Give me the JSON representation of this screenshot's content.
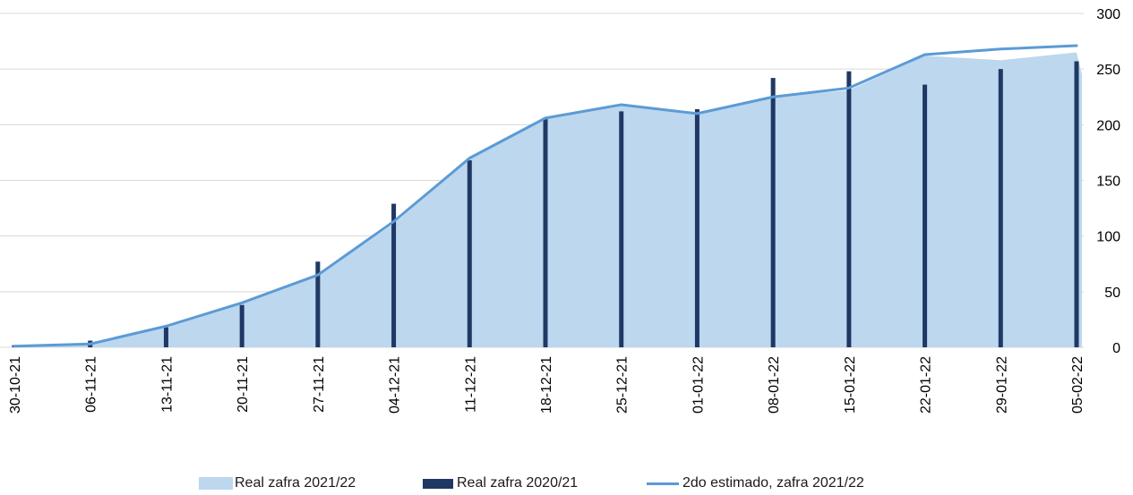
{
  "chart_data": {
    "type": "bar",
    "title": "",
    "xlabel": "",
    "ylabel": "",
    "ylim": [
      0,
      300
    ],
    "yticks": [
      0,
      50,
      100,
      150,
      200,
      250,
      300
    ],
    "y_axis_position": "right",
    "grid": "horizontal",
    "legend_position": "bottom",
    "categories": [
      "30-10-21",
      "06-11-21",
      "13-11-21",
      "20-11-21",
      "27-11-21",
      "04-12-21",
      "11-12-21",
      "18-12-21",
      "25-12-21",
      "01-01-22",
      "08-01-22",
      "15-01-22",
      "22-01-22",
      "29-01-22",
      "05-02-22"
    ],
    "series": [
      {
        "name": "Real zafra 2021/22",
        "kind": "area",
        "color": "#bdd7ee",
        "values": [
          1,
          3,
          18,
          40,
          64,
          111,
          169,
          206,
          218,
          210,
          225,
          231,
          262,
          258,
          265
        ]
      },
      {
        "name": "Real zafra 2020/21",
        "kind": "bar",
        "color": "#1f3864",
        "values": [
          2,
          6,
          18,
          38,
          77,
          129,
          168,
          205,
          212,
          214,
          242,
          248,
          236,
          250,
          257
        ]
      },
      {
        "name": "2do estimado, zafra 2021/22",
        "kind": "line",
        "color": "#5b9bd5",
        "values": [
          1,
          3,
          19,
          40,
          65,
          113,
          170,
          206,
          218,
          210,
          225,
          233,
          263,
          268,
          271
        ]
      }
    ]
  }
}
